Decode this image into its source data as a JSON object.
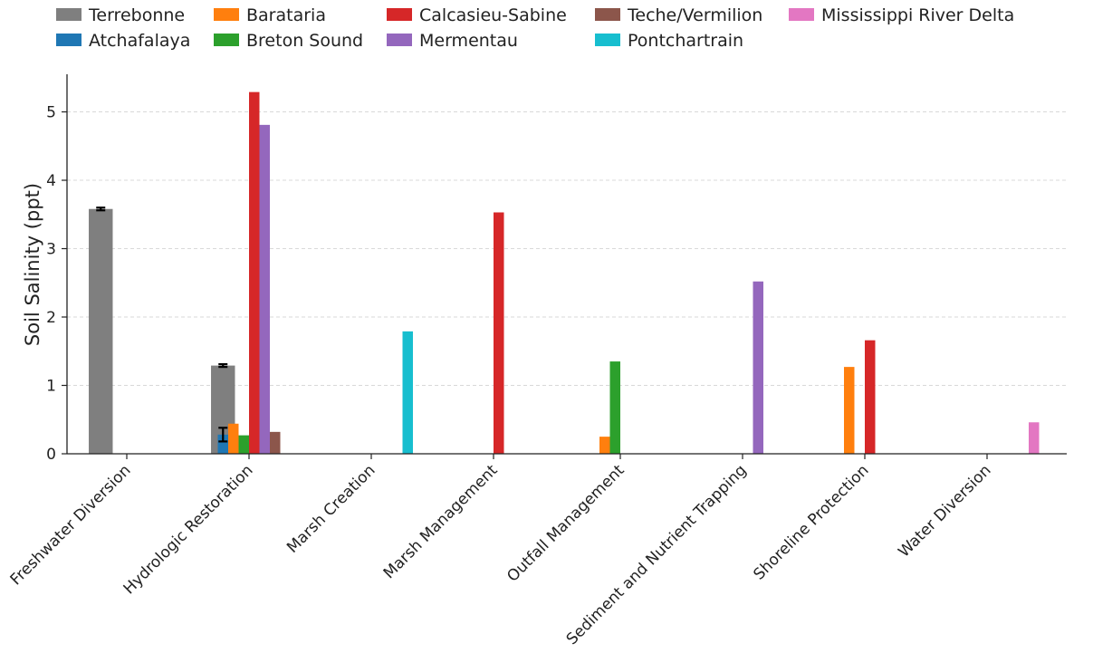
{
  "chart_data": {
    "type": "bar",
    "title": "",
    "xlabel": "",
    "ylabel": "Soil Salinity (ppt)",
    "ylim": [
      0,
      5.55
    ],
    "yticks": [
      0,
      1,
      2,
      3,
      4,
      5
    ],
    "grid": true,
    "legend_position": "top",
    "categories": [
      "Freshwater Diversion",
      "Hydrologic Restoration",
      "Marsh Creation",
      "Marsh Management",
      "Outfall Management",
      "Sediment and Nutrient Trapping",
      "Shoreline Protection",
      "Water Diversion"
    ],
    "series": [
      {
        "name": "Terrebonne",
        "color": "#7f7f7f",
        "values": [
          3.58,
          1.29,
          null,
          null,
          null,
          null,
          null,
          null
        ],
        "errors": [
          0.02,
          0.02,
          null,
          null,
          null,
          null,
          null,
          null
        ]
      },
      {
        "name": "Atchafalaya",
        "color": "#1f77b4",
        "values": [
          null,
          0.28,
          null,
          null,
          null,
          null,
          null,
          null
        ],
        "errors": [
          null,
          0.1,
          null,
          null,
          null,
          null,
          null,
          null
        ]
      },
      {
        "name": "Barataria",
        "color": "#ff7f0e",
        "values": [
          null,
          0.44,
          null,
          null,
          0.25,
          null,
          1.27,
          null
        ],
        "errors": [
          null,
          null,
          null,
          null,
          null,
          null,
          null,
          null
        ]
      },
      {
        "name": "Breton Sound",
        "color": "#2ca02c",
        "values": [
          null,
          0.27,
          null,
          null,
          1.35,
          null,
          null,
          null
        ],
        "errors": [
          null,
          null,
          null,
          null,
          null,
          null,
          null,
          null
        ]
      },
      {
        "name": "Calcasieu-Sabine",
        "color": "#d62728",
        "values": [
          null,
          5.29,
          null,
          3.53,
          null,
          null,
          1.66,
          null
        ],
        "errors": [
          null,
          null,
          null,
          null,
          null,
          null,
          null,
          null
        ]
      },
      {
        "name": "Mermentau",
        "color": "#9467bd",
        "values": [
          null,
          4.81,
          null,
          null,
          null,
          2.52,
          null,
          null
        ],
        "errors": [
          null,
          null,
          null,
          null,
          null,
          null,
          null,
          null
        ]
      },
      {
        "name": "Teche/Vermilion",
        "color": "#8c564b",
        "values": [
          null,
          0.32,
          null,
          null,
          null,
          null,
          null,
          null
        ],
        "errors": [
          null,
          null,
          null,
          null,
          null,
          null,
          null,
          null
        ]
      },
      {
        "name": "Pontchartrain",
        "color": "#17becf",
        "values": [
          null,
          null,
          1.79,
          null,
          null,
          null,
          null,
          null
        ],
        "errors": [
          null,
          null,
          null,
          null,
          null,
          null,
          null,
          null
        ]
      },
      {
        "name": "Mississippi River Delta",
        "color": "#e377c2",
        "values": [
          null,
          null,
          null,
          null,
          null,
          null,
          null,
          0.46
        ],
        "errors": [
          null,
          null,
          null,
          null,
          null,
          null,
          null,
          null
        ]
      }
    ]
  }
}
